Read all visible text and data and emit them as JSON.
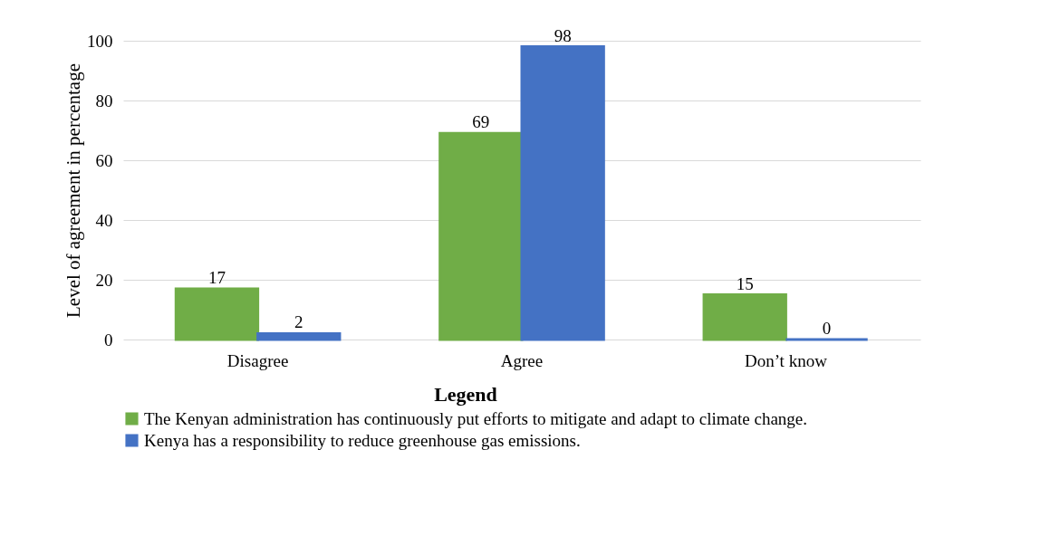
{
  "chart_data": {
    "type": "bar",
    "ylabel": "Level of agreement in percentage",
    "legend_title": "Legend",
    "categories": [
      "Disagree",
      "Agree",
      "Don’t know"
    ],
    "series": [
      {
        "name": "The Kenyan administration has continuously put efforts to mitigate and adapt to climate change.",
        "color": "#70ad47",
        "values": [
          17,
          69,
          15
        ]
      },
      {
        "name": "Kenya has a responsibility to reduce greenhouse gas emissions.",
        "color": "#4472c4",
        "values": [
          2,
          98,
          0
        ]
      }
    ],
    "ylim": [
      0,
      100
    ],
    "yticks": [
      0,
      20,
      40,
      60,
      80,
      100
    ],
    "grid": "y",
    "legend": "bottom",
    "data_labels": true
  }
}
